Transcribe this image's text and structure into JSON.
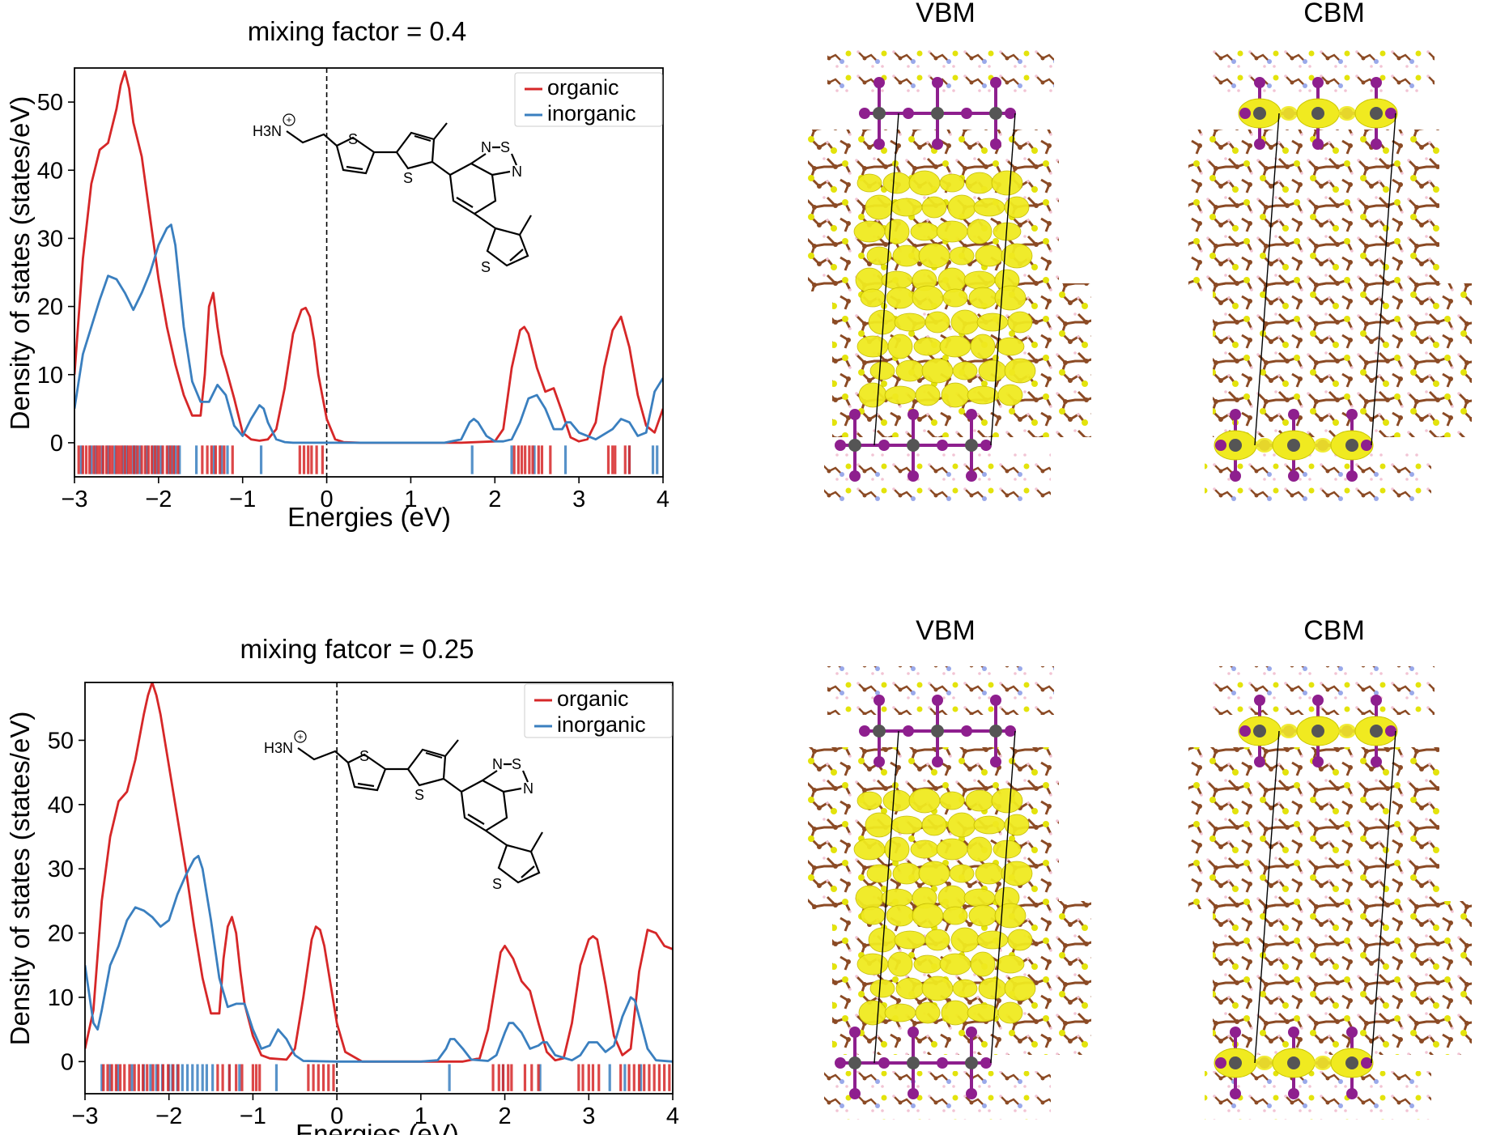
{
  "colors": {
    "organic": "#d62728",
    "inorganic": "#3a7fbf",
    "carbon": "#8b4a24",
    "sulfur": "#e3e30c",
    "iodine": "#8e1f8e",
    "lead": "#555555",
    "isosurface": "#f0ea20"
  },
  "chart_data": [
    {
      "type": "line",
      "title": "mixing factor = 0.4",
      "xlabel": "Energies (eV)",
      "ylabel": "Density of states (states/eV)",
      "xlim": [
        -3,
        4
      ],
      "ylim": [
        -5,
        55
      ],
      "xticks": [
        "−3",
        "−2",
        "−1",
        "0",
        "1",
        "2",
        "3",
        "4"
      ],
      "yticks": [
        "0",
        "10",
        "20",
        "30",
        "40",
        "50"
      ],
      "xtick_values": [
        -3,
        -2,
        -1,
        0,
        1,
        2,
        3,
        4
      ],
      "ytick_values": [
        0,
        10,
        20,
        30,
        40,
        50
      ],
      "fermi_level": 0,
      "legend": "top-right",
      "series": [
        {
          "name": "organic",
          "x": [
            -3.0,
            -2.9,
            -2.8,
            -2.7,
            -2.6,
            -2.5,
            -2.45,
            -2.4,
            -2.35,
            -2.3,
            -2.2,
            -2.1,
            -2.0,
            -1.9,
            -1.8,
            -1.7,
            -1.6,
            -1.5,
            -1.45,
            -1.4,
            -1.35,
            -1.3,
            -1.25,
            -1.2,
            -1.1,
            -1.0,
            -0.9,
            -0.8,
            -0.7,
            -0.6,
            -0.5,
            -0.4,
            -0.3,
            -0.25,
            -0.2,
            -0.15,
            -0.1,
            0.0,
            0.1,
            0.2,
            0.4,
            0.8,
            1.2,
            1.6,
            2.0,
            2.1,
            2.2,
            2.3,
            2.35,
            2.4,
            2.5,
            2.6,
            2.7,
            2.8,
            2.9,
            3.0,
            3.1,
            3.2,
            3.3,
            3.4,
            3.5,
            3.6,
            3.7,
            3.8,
            3.9,
            4.0
          ],
          "y": [
            10,
            27,
            38,
            43,
            44,
            49,
            52.5,
            54.5,
            52,
            47,
            42,
            33,
            24,
            17,
            11.5,
            7,
            4,
            4,
            10,
            20,
            22,
            17,
            13,
            11,
            6.5,
            1.5,
            0.5,
            0.3,
            0.5,
            2,
            8,
            16,
            19.5,
            19.8,
            18.5,
            15,
            10,
            3.5,
            0.5,
            0.1,
            0,
            0,
            0,
            0,
            0.2,
            2,
            11,
            16.5,
            17,
            16,
            11,
            7.5,
            8,
            4.5,
            0.8,
            0.2,
            0.5,
            3,
            11,
            16.5,
            18.5,
            14,
            7,
            2.5,
            1.5,
            5
          ]
        },
        {
          "name": "inorganic",
          "x": [
            -3.0,
            -2.9,
            -2.8,
            -2.7,
            -2.6,
            -2.5,
            -2.4,
            -2.3,
            -2.2,
            -2.1,
            -2.0,
            -1.9,
            -1.85,
            -1.8,
            -1.75,
            -1.7,
            -1.6,
            -1.5,
            -1.4,
            -1.3,
            -1.2,
            -1.1,
            -1.0,
            -0.9,
            -0.8,
            -0.75,
            -0.7,
            -0.6,
            -0.5,
            -0.4,
            0.0,
            0.5,
            1.0,
            1.4,
            1.6,
            1.7,
            1.75,
            1.8,
            1.9,
            2.0,
            2.1,
            2.2,
            2.3,
            2.4,
            2.5,
            2.6,
            2.7,
            2.8,
            2.85,
            2.9,
            3.0,
            3.2,
            3.4,
            3.5,
            3.6,
            3.7,
            3.8,
            3.9,
            4.0
          ],
          "y": [
            5,
            13,
            17,
            21,
            24.5,
            24,
            22,
            19.5,
            22,
            25,
            29,
            31.5,
            32,
            29,
            23,
            17,
            9,
            6,
            6,
            8.5,
            7,
            2.5,
            1,
            3.5,
            5.5,
            5,
            3,
            0.5,
            0.1,
            0,
            0,
            0,
            0,
            0,
            0.5,
            3,
            3.5,
            3,
            1,
            0.2,
            0.2,
            0.5,
            3,
            6.5,
            7,
            5,
            2,
            2,
            3,
            3,
            1.5,
            0.5,
            2,
            3.5,
            3,
            1,
            1.5,
            7.5,
            9.5
          ]
        }
      ],
      "rug": {
        "organic": [
          -2.95,
          -2.9,
          -2.86,
          -2.82,
          -2.77,
          -2.73,
          -2.7,
          -2.66,
          -2.62,
          -2.58,
          -2.55,
          -2.5,
          -2.47,
          -2.44,
          -2.4,
          -2.36,
          -2.33,
          -2.29,
          -2.25,
          -2.2,
          -2.16,
          -2.12,
          -2.08,
          -2.04,
          -2.0,
          -1.95,
          -1.9,
          -1.86,
          -1.82,
          -1.77,
          -1.48,
          -1.42,
          -1.37,
          -1.32,
          -1.27,
          -1.22,
          -1.12,
          -0.32,
          -0.27,
          -0.22,
          -0.18,
          -0.12,
          -0.05,
          2.23,
          2.28,
          2.32,
          2.36,
          2.41,
          2.45,
          2.52,
          2.56,
          2.66,
          3.35,
          3.4,
          3.43,
          3.55,
          3.6
        ],
        "inorganic": [
          -2.92,
          -2.8,
          -2.75,
          -2.67,
          -2.6,
          -2.52,
          -2.42,
          -2.38,
          -2.3,
          -2.27,
          -2.22,
          -2.14,
          -2.06,
          -2.02,
          -1.97,
          -1.88,
          -1.84,
          -1.8,
          -1.75,
          -1.55,
          -1.34,
          -1.25,
          -1.18,
          -0.78,
          1.73,
          2.2,
          2.47,
          2.84,
          3.6,
          3.88,
          3.93
        ]
      }
    },
    {
      "type": "line",
      "title": "mixing fatcor = 0.25",
      "xlabel": "Energies (eV)",
      "ylabel": "Density of states (states/eV)",
      "xlim": [
        -3,
        4
      ],
      "ylim": [
        -5,
        59
      ],
      "xticks": [
        "−3",
        "−2",
        "−1",
        "0",
        "1",
        "2",
        "3",
        "4"
      ],
      "yticks": [
        "0",
        "10",
        "20",
        "30",
        "40",
        "50"
      ],
      "xtick_values": [
        -3,
        -2,
        -1,
        0,
        1,
        2,
        3,
        4
      ],
      "ytick_values": [
        0,
        10,
        20,
        30,
        40,
        50
      ],
      "fermi_level": 0,
      "legend": "top-right",
      "series": [
        {
          "name": "organic",
          "x": [
            -3.0,
            -2.9,
            -2.8,
            -2.7,
            -2.6,
            -2.5,
            -2.4,
            -2.3,
            -2.25,
            -2.2,
            -2.15,
            -2.1,
            -2.0,
            -1.9,
            -1.8,
            -1.7,
            -1.6,
            -1.5,
            -1.4,
            -1.35,
            -1.3,
            -1.25,
            -1.2,
            -1.15,
            -1.1,
            -1.0,
            -0.9,
            -0.8,
            -0.6,
            -0.5,
            -0.4,
            -0.3,
            -0.25,
            -0.2,
            -0.15,
            -0.1,
            0.0,
            0.1,
            0.3,
            0.8,
            1.2,
            1.5,
            1.7,
            1.8,
            1.9,
            1.95,
            2.0,
            2.1,
            2.2,
            2.3,
            2.4,
            2.5,
            2.6,
            2.7,
            2.8,
            2.9,
            3.0,
            3.05,
            3.1,
            3.2,
            3.3,
            3.4,
            3.5,
            3.6,
            3.7,
            3.8,
            3.9,
            4.0
          ],
          "y": [
            2,
            8,
            25,
            35,
            40.5,
            42,
            47,
            54,
            57,
            59,
            57,
            54,
            46,
            38,
            30,
            21,
            13,
            7.5,
            7.5,
            16,
            21,
            22.5,
            20,
            14,
            9,
            4,
            1,
            0.5,
            0.3,
            2,
            10,
            19,
            21,
            20.5,
            18,
            14,
            6,
            1.5,
            0,
            0,
            0,
            0,
            0.5,
            5,
            13,
            17,
            18,
            16,
            12.5,
            11,
            6,
            1.5,
            0.2,
            0.5,
            6,
            15,
            19,
            19.5,
            19,
            12,
            4,
            1,
            2,
            14,
            20.5,
            20,
            18,
            17.5
          ]
        },
        {
          "name": "inorganic",
          "x": [
            -3.0,
            -2.9,
            -2.85,
            -2.8,
            -2.7,
            -2.6,
            -2.5,
            -2.4,
            -2.3,
            -2.2,
            -2.1,
            -2.0,
            -1.9,
            -1.8,
            -1.7,
            -1.65,
            -1.6,
            -1.5,
            -1.4,
            -1.3,
            -1.2,
            -1.1,
            -1.0,
            -0.9,
            -0.8,
            -0.7,
            -0.6,
            -0.5,
            -0.4,
            0.0,
            0.5,
            1.0,
            1.2,
            1.3,
            1.35,
            1.4,
            1.5,
            1.6,
            1.8,
            1.9,
            2.0,
            2.05,
            2.1,
            2.2,
            2.3,
            2.4,
            2.45,
            2.5,
            2.6,
            2.8,
            2.9,
            3.0,
            3.1,
            3.2,
            3.3,
            3.4,
            3.5,
            3.55,
            3.6,
            3.7,
            3.8,
            4.0
          ],
          "y": [
            15,
            6,
            5,
            8,
            15,
            18,
            22,
            24,
            23.5,
            22.5,
            21,
            22,
            26,
            29,
            31.5,
            32,
            30,
            22,
            13,
            8.5,
            9,
            9,
            5,
            2,
            2.5,
            5,
            3.5,
            1,
            0.1,
            0,
            0,
            0,
            0.2,
            2,
            3.5,
            3.5,
            2,
            0.3,
            0.1,
            1,
            4.5,
            6,
            6,
            4.5,
            2,
            2.5,
            3,
            3,
            1,
            0.2,
            1,
            3,
            3,
            1.5,
            2.5,
            7,
            10,
            9.5,
            7,
            2,
            0.2,
            0
          ]
        }
      ],
      "rug": {
        "organic": [
          -2.78,
          -2.73,
          -2.68,
          -2.63,
          -2.58,
          -2.53,
          -2.47,
          -2.41,
          -2.36,
          -2.31,
          -2.26,
          -2.19,
          -2.13,
          -2.07,
          -2.01,
          -1.95,
          -1.89,
          -1.42,
          -1.36,
          -1.28,
          -1.2,
          -1.13,
          -1.0,
          -0.96,
          -0.92,
          -0.34,
          -0.28,
          -0.22,
          -0.16,
          -0.1,
          -0.04,
          1.86,
          1.93,
          1.98,
          2.04,
          2.08,
          2.24,
          2.32,
          2.4,
          2.88,
          2.93,
          3.0,
          3.05,
          3.12,
          3.38,
          3.48,
          3.54,
          3.6,
          3.66,
          3.72,
          3.78,
          3.84,
          3.9,
          3.96
        ],
        "inorganic": [
          -2.8,
          -2.7,
          -2.61,
          -2.44,
          -2.3,
          -2.22,
          -2.15,
          -2.08,
          -2.0,
          -1.96,
          -1.9,
          -1.84,
          -1.78,
          -1.72,
          -1.66,
          -1.6,
          -1.55,
          -1.48,
          -1.28,
          -1.16,
          -0.72,
          1.34,
          1.98,
          2.42,
          3.25,
          3.43,
          3.62
        ]
      }
    }
  ],
  "chemical_structure": {
    "ammonium": "H3N",
    "ammonium_sub": "3",
    "charge": "+",
    "sulfur": "S",
    "nitrogen": "N"
  },
  "panels": [
    {
      "title": "VBM"
    },
    {
      "title": "CBM"
    },
    {
      "title": "VBM"
    },
    {
      "title": "CBM"
    }
  ]
}
